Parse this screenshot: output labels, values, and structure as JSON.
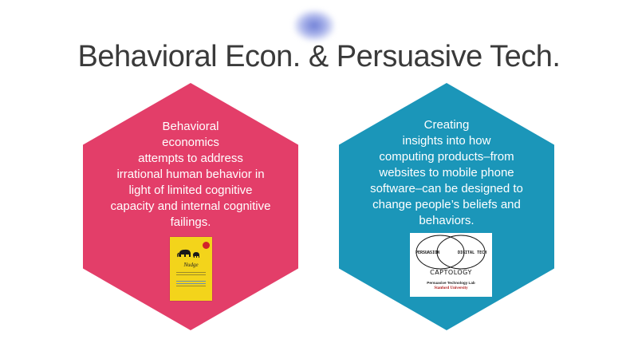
{
  "title": "Behavioral Econ. & Persuasive Tech.",
  "left_panel": {
    "text": "Behavioral\neconomics\nattempts to address\nirrational human behavior in\nlight of limited cognitive\ncapacity and internal cognitive\nfailings.",
    "color": "#e33e69",
    "image": {
      "title": "Nudge"
    }
  },
  "right_panel": {
    "text": "Creating\ninsights into how\ncomputing products–from\nwebsites to mobile phone\nsoftware–can be designed to\nchange people’s beliefs and\nbehaviors.",
    "color": "#1b96b9",
    "image": {
      "left_word": "PERSUASION",
      "right_word": "DIGITAL TECH",
      "title": "CAPTOLOGY",
      "lab": "Persuasive Technology Lab",
      "university": "Stanford University"
    }
  }
}
